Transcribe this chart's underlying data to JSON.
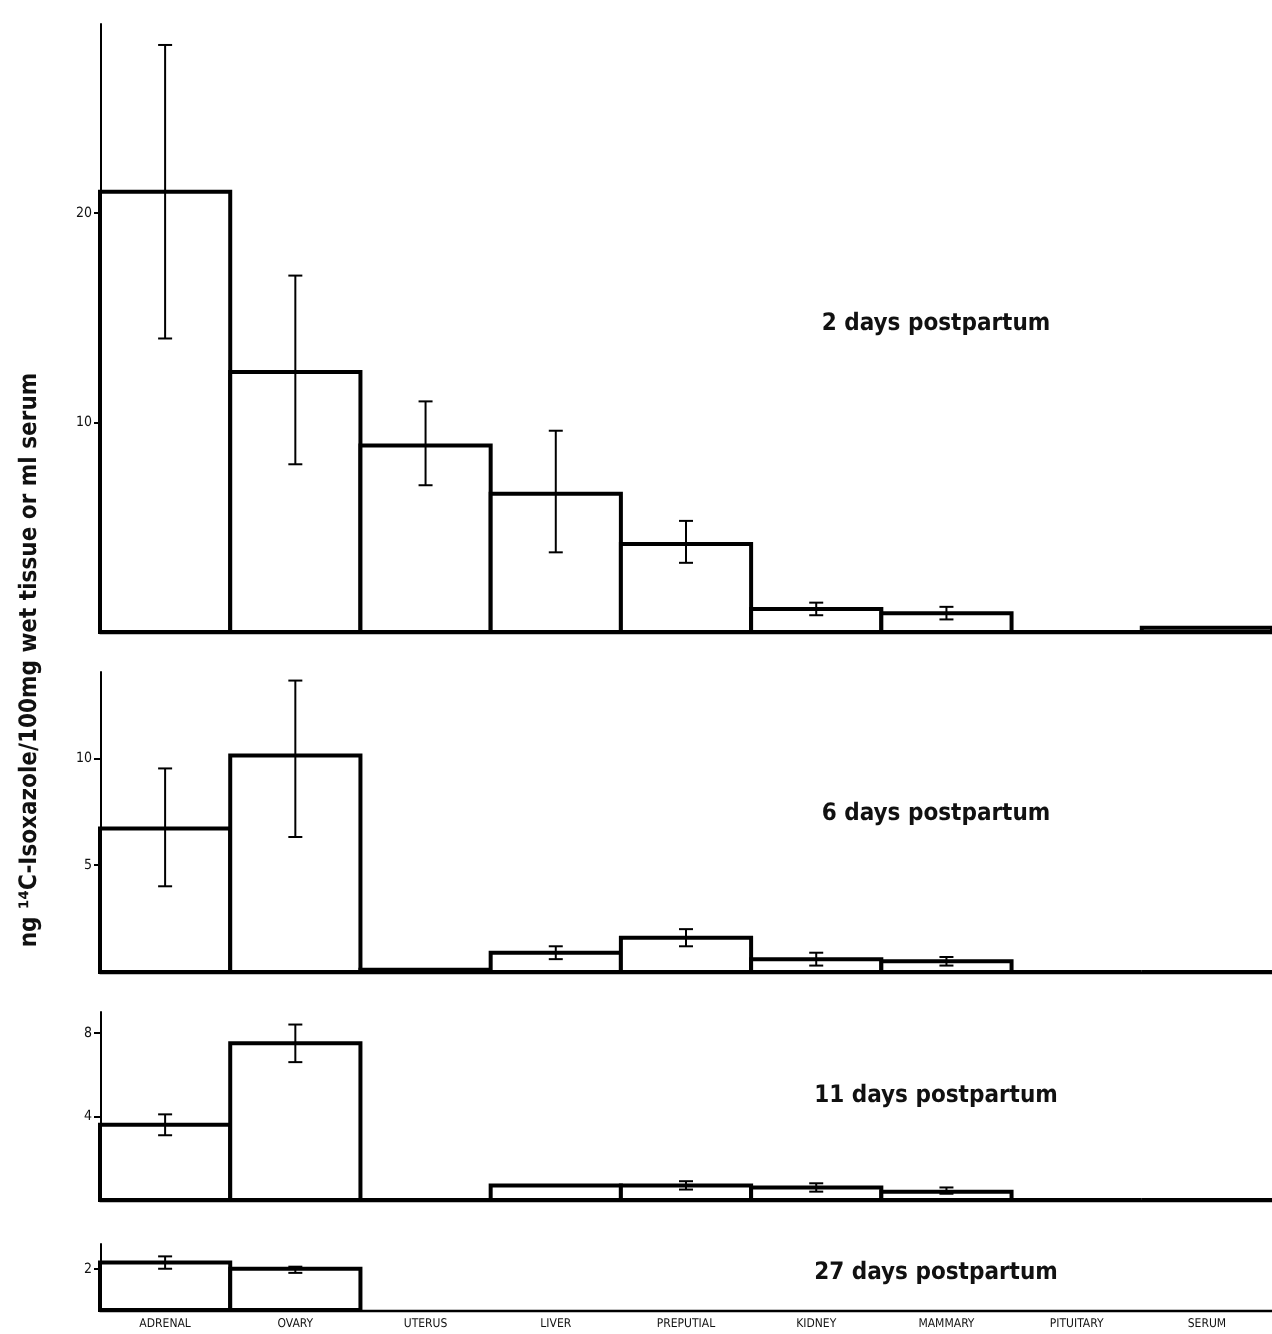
{
  "chart_data": [
    {
      "type": "bar",
      "title": "2 days postpartum",
      "ylabel": "ng ¹⁴C-Isoxazole/100mg wet tissue or ml serum",
      "categories": [
        null,
        null,
        null,
        null,
        null,
        null,
        null,
        null,
        null
      ],
      "color": "#000000",
      "values": [
        21,
        12.4,
        8.9,
        6.6,
        4.2,
        1.1,
        0.9,
        0,
        0.2
      ],
      "errors": [
        [
          14,
          28
        ],
        [
          8,
          17
        ],
        [
          7,
          11
        ],
        [
          3.8,
          9.6
        ],
        [
          3.3,
          5.3
        ],
        [
          0.8,
          1.4
        ],
        [
          0.6,
          1.2
        ],
        null,
        null
      ],
      "ylim": [
        0,
        29
      ],
      "yticks": [
        10,
        20
      ],
      "grid": false,
      "tick_labels": "y"
    },
    {
      "type": "bar",
      "title": "6 days postpartum",
      "categories": [
        null,
        null,
        null,
        null,
        null,
        null,
        null,
        null,
        null
      ],
      "color": "#000000",
      "values": [
        6.7,
        10.1,
        0.1,
        0.9,
        1.6,
        0.6,
        0.5,
        0,
        0
      ],
      "errors": [
        [
          4,
          9.5
        ],
        [
          6.3,
          13.6
        ],
        null,
        [
          0.6,
          1.2
        ],
        [
          1.2,
          2.0
        ],
        [
          0.3,
          0.9
        ],
        [
          0.3,
          0.7
        ],
        null,
        null
      ],
      "ylim": [
        0,
        14
      ],
      "yticks": [
        5,
        10
      ],
      "grid": false,
      "tick_labels": "y"
    },
    {
      "type": "bar",
      "title": "11 days postpartum",
      "categories": [
        null,
        null,
        null,
        null,
        null,
        null,
        null,
        null,
        null
      ],
      "color": "#000000",
      "values": [
        3.6,
        7.5,
        0,
        0.7,
        0.7,
        0.6,
        0.4,
        0,
        0
      ],
      "errors": [
        [
          3.1,
          4.1
        ],
        [
          6.6,
          8.4
        ],
        null,
        null,
        [
          0.5,
          0.9
        ],
        [
          0.4,
          0.8
        ],
        [
          0.3,
          0.6
        ],
        null,
        null
      ],
      "ylim": [
        0,
        9
      ],
      "yticks": [
        4,
        8
      ],
      "grid": false,
      "tick_labels": "y"
    },
    {
      "type": "bar",
      "title": "27 days postpartum",
      "categories": [
        "ADRENAL",
        "OVARY",
        "UTERUS",
        "LIVER",
        "PREPUTIAL",
        "KIDNEY",
        "MAMMARY",
        "PITUITARY",
        "SERUM"
      ],
      "color": "#000000",
      "values": [
        2.3,
        2.0,
        null,
        null,
        null,
        null,
        null,
        null,
        null
      ],
      "errors": [
        [
          2.0,
          2.6
        ],
        [
          1.8,
          2.1
        ],
        null,
        null,
        null,
        null,
        null,
        null,
        null
      ],
      "ylim": [
        0,
        3.2
      ],
      "yticks": [
        2
      ],
      "grid": false
    }
  ]
}
